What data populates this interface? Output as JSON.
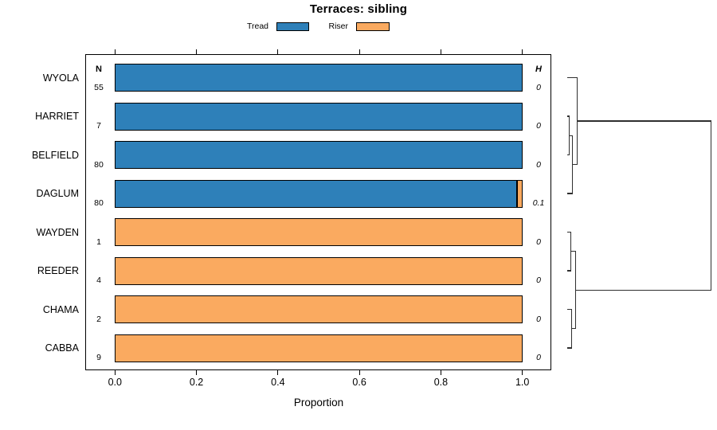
{
  "chart_data": {
    "type": "bar",
    "orientation": "horizontal-stacked",
    "title": "Terraces: sibling",
    "legend": [
      {
        "label": "Tread",
        "series": "tread"
      },
      {
        "label": "Riser",
        "series": "riser"
      }
    ],
    "columns": {
      "n_header": "N",
      "h_header": "H"
    },
    "categories": [
      "WYOLA",
      "HARRIET",
      "BELFIELD",
      "DAGLUM",
      "WAYDEN",
      "REEDER",
      "CHAMA",
      "CABBA"
    ],
    "rows": [
      {
        "label": "WYOLA",
        "n": "55",
        "h": "0",
        "tread": 1.0,
        "riser": 0.0
      },
      {
        "label": "HARRIET",
        "n": "7",
        "h": "0",
        "tread": 1.0,
        "riser": 0.0
      },
      {
        "label": "BELFIELD",
        "n": "80",
        "h": "0",
        "tread": 1.0,
        "riser": 0.0
      },
      {
        "label": "DAGLUM",
        "n": "80",
        "h": "0.1",
        "tread": 0.986,
        "riser": 0.014
      },
      {
        "label": "WAYDEN",
        "n": "1",
        "h": "0",
        "tread": 0.0,
        "riser": 1.0
      },
      {
        "label": "REEDER",
        "n": "4",
        "h": "0",
        "tread": 0.0,
        "riser": 1.0
      },
      {
        "label": "CHAMA",
        "n": "2",
        "h": "0",
        "tread": 0.0,
        "riser": 1.0
      },
      {
        "label": "CABBA",
        "n": "9",
        "h": "0",
        "tread": 0.0,
        "riser": 1.0
      }
    ],
    "axis": {
      "xlabel": "Proportion",
      "x_ticks": [
        "0.0",
        "0.2",
        "0.4",
        "0.6",
        "0.8",
        "1.0"
      ],
      "xlim": [
        0,
        1
      ],
      "grid": false,
      "ticks_top_and_bottom": true
    },
    "colors": {
      "tread": "#2E80B9",
      "riser": "#FAAA60",
      "line": "#2F2F2F"
    },
    "dendrogram": {
      "position": "right",
      "structure": "((WYOLA,((HARRIET,BELFIELD),DAGLUM)),((WAYDEN,REEDER),(CHAMA,CABBA)))",
      "merges": [
        {
          "left": "leaf:1",
          "right": "leaf:2",
          "height": 0.012
        },
        {
          "left": "merge:0",
          "right": "leaf:3",
          "height": 0.038
        },
        {
          "left": "leaf:0",
          "right": "merge:1",
          "height": 0.068
        },
        {
          "left": "leaf:4",
          "right": "leaf:5",
          "height": 0.026
        },
        {
          "left": "leaf:6",
          "right": "leaf:7",
          "height": 0.029
        },
        {
          "left": "merge:3",
          "right": "merge:4",
          "height": 0.059
        },
        {
          "left": "merge:2",
          "right": "merge:5",
          "height": 1.0
        }
      ]
    }
  }
}
